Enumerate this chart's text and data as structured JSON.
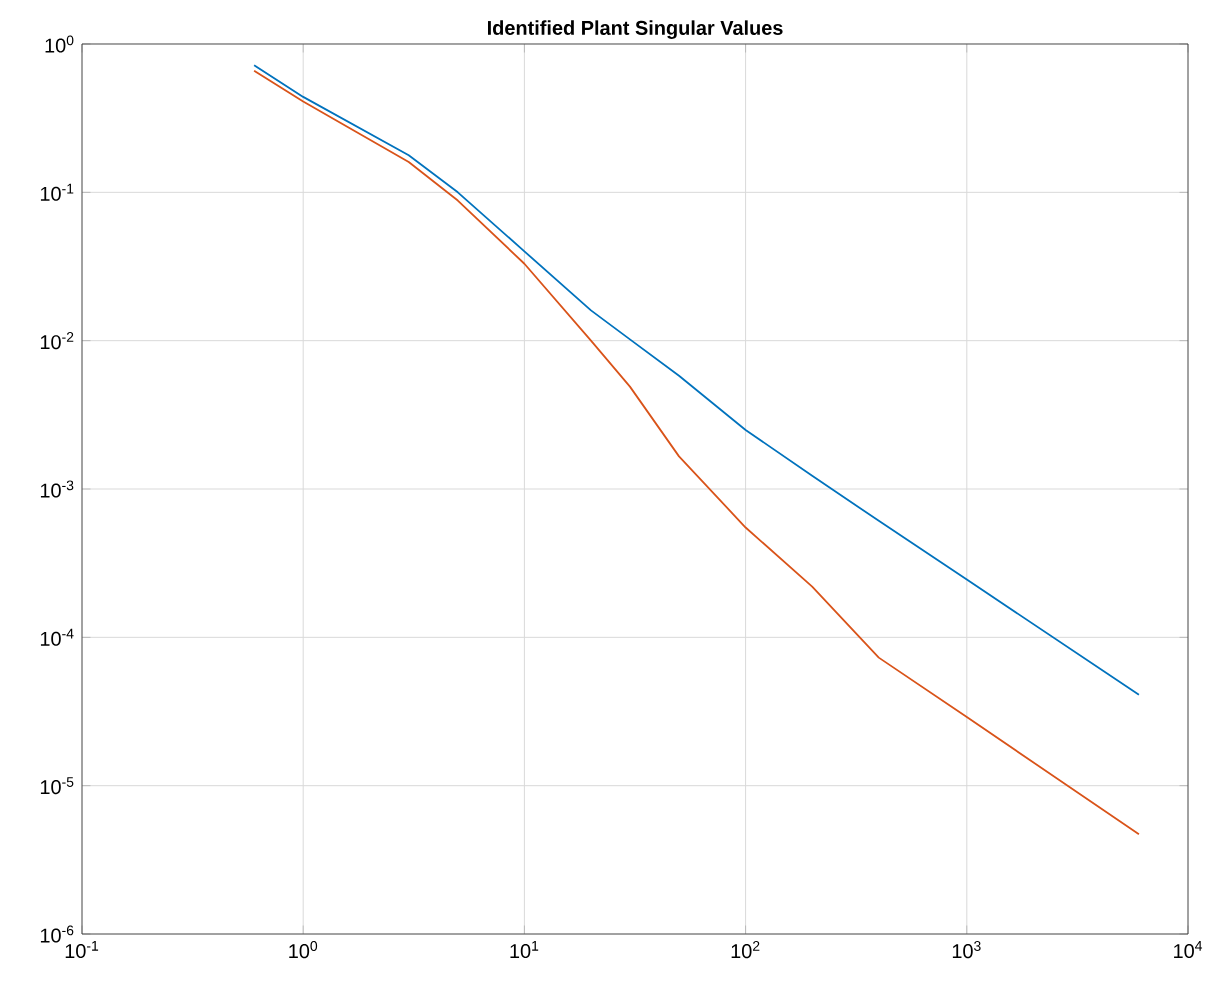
{
  "chart_data": {
    "type": "line",
    "title": "Identified Plant Singular Values",
    "log": "xy",
    "grid": true,
    "xlim": [
      0.1,
      10000
    ],
    "ylim": [
      1e-06,
      1
    ],
    "xticks": [
      {
        "value": 0.1,
        "label": "10$^{-1}$"
      },
      {
        "value": 1,
        "label": "10$^{0}$"
      },
      {
        "value": 10,
        "label": "10$^{1}$"
      },
      {
        "value": 100,
        "label": "10$^{2}$"
      },
      {
        "value": 1000,
        "label": "10$^{3}$"
      },
      {
        "value": 10000,
        "label": "10$^{4}$"
      }
    ],
    "yticks": [
      {
        "value": 1e-06,
        "label": "10$^{-6}$"
      },
      {
        "value": 1e-05,
        "label": "10$^{-5}$"
      },
      {
        "value": 0.0001,
        "label": "10$^{-4}$"
      },
      {
        "value": 0.001,
        "label": "10$^{-3}$"
      },
      {
        "value": 0.01,
        "label": "10$^{-2}$"
      },
      {
        "value": 0.1,
        "label": "10$^{-1}$"
      },
      {
        "value": 1,
        "label": "10$^{0}$"
      }
    ],
    "x": [
      0.6,
      1,
      3,
      5,
      10,
      20,
      30,
      50,
      100,
      200,
      400,
      1000,
      6000
    ],
    "series": [
      {
        "color": "#0072bd",
        "values": [
          0.72,
          0.44,
          0.178,
          0.1,
          0.04,
          0.016,
          0.0102,
          0.0058,
          0.0025,
          0.00123,
          0.00061,
          0.000245,
          4.1e-05
        ]
      },
      {
        "color": "#d95319",
        "values": [
          0.66,
          0.41,
          0.16,
          0.088,
          0.033,
          0.01,
          0.0049,
          0.00166,
          0.00055,
          0.00022,
          7.3e-05,
          2.9e-05,
          4.7e-06
        ]
      }
    ]
  }
}
